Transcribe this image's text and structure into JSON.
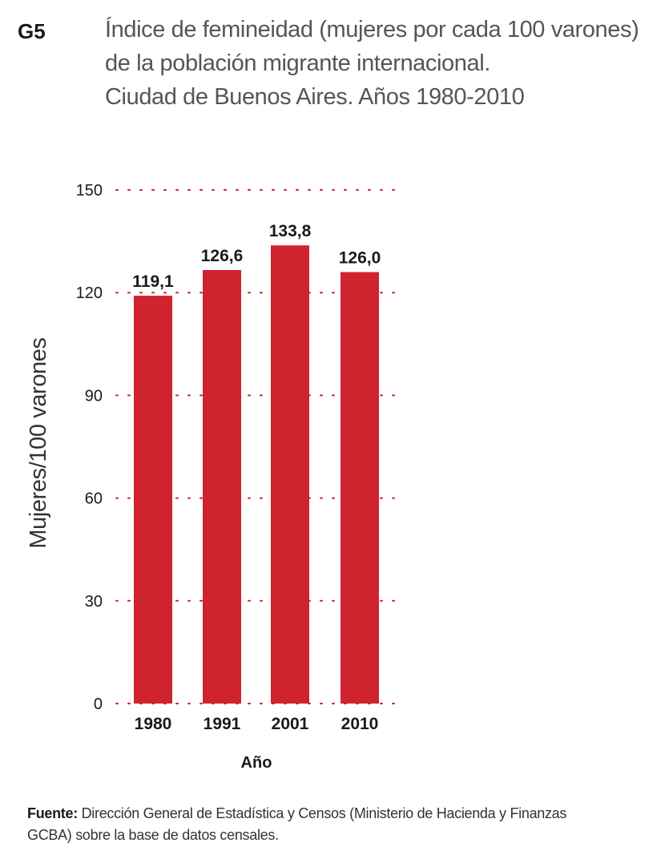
{
  "figure": {
    "label": "G5",
    "title_lines": [
      "Índice de femineidad (mujeres por cada 100 varones)",
      "de la población migrante internacional.",
      "Ciudad de Buenos  Aires. Años 1980-2010"
    ]
  },
  "colors": {
    "accent": "#c8222c",
    "bar": "#cf2330",
    "grid": "#c8222c",
    "text": "#1a1a1a"
  },
  "chart_data": {
    "type": "bar",
    "categories": [
      "1980",
      "1991",
      "2001",
      "2010"
    ],
    "values": [
      119.1,
      126.6,
      133.8,
      126.0
    ],
    "value_labels": [
      "119,1",
      "126,6",
      "133,8",
      "126,0"
    ],
    "xlabel": "Año",
    "ylabel": "Mujeres/100 varones",
    "ylim": [
      0,
      150
    ],
    "yticks": [
      0,
      30,
      60,
      90,
      120,
      150
    ],
    "grid": true
  },
  "source": {
    "label": "Fuente:",
    "text": "Dirección General de Estadística y Censos (Ministerio de Hacienda y Finanzas GCBA) sobre la base de datos censales."
  }
}
